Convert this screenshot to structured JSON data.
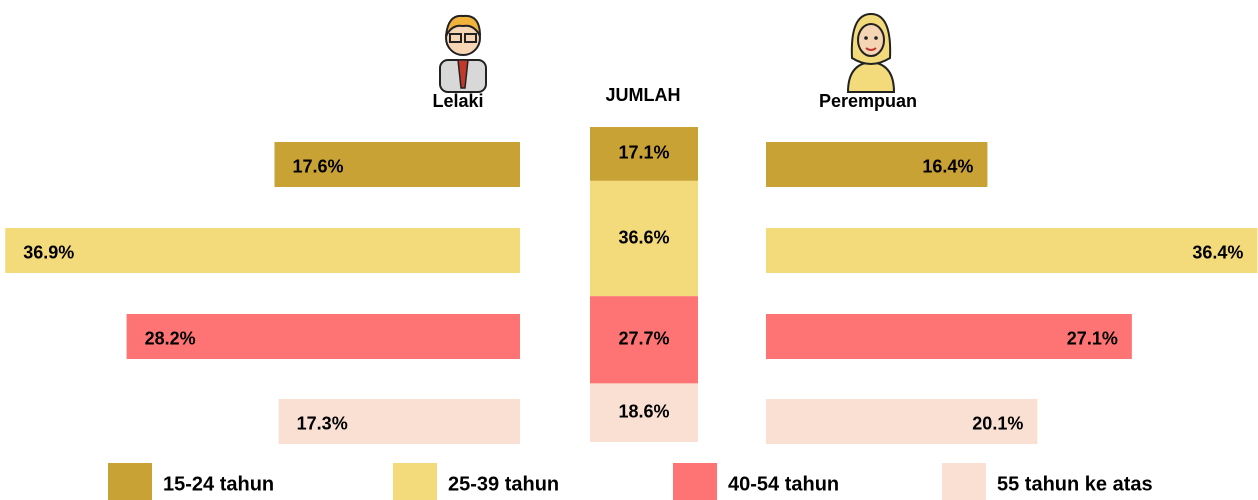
{
  "chart_data": {
    "type": "pyramid",
    "categories": [
      "15-24 tahun",
      "25-39 tahun",
      "40-54 tahun",
      "55 tahun ke atas"
    ],
    "colors": [
      "#c9a236",
      "#f3da7a",
      "#fe7474",
      "#f9e0d2"
    ],
    "series": [
      {
        "name": "Lelaki",
        "values": [
          17.6,
          36.9,
          28.2,
          17.3
        ],
        "value_labels": [
          "17.6%",
          "36.9%",
          "28.2%",
          "17.3%"
        ]
      },
      {
        "name": "JUMLAH",
        "values": [
          17.1,
          36.6,
          27.7,
          18.6
        ],
        "value_labels": [
          "17.1%",
          "36.6%",
          "27.7%",
          "18.6%"
        ]
      },
      {
        "name": "Perempuan",
        "values": [
          16.4,
          36.4,
          27.1,
          20.1
        ],
        "value_labels": [
          "16.4%",
          "36.4%",
          "27.1%",
          "20.1%"
        ]
      }
    ]
  }
}
